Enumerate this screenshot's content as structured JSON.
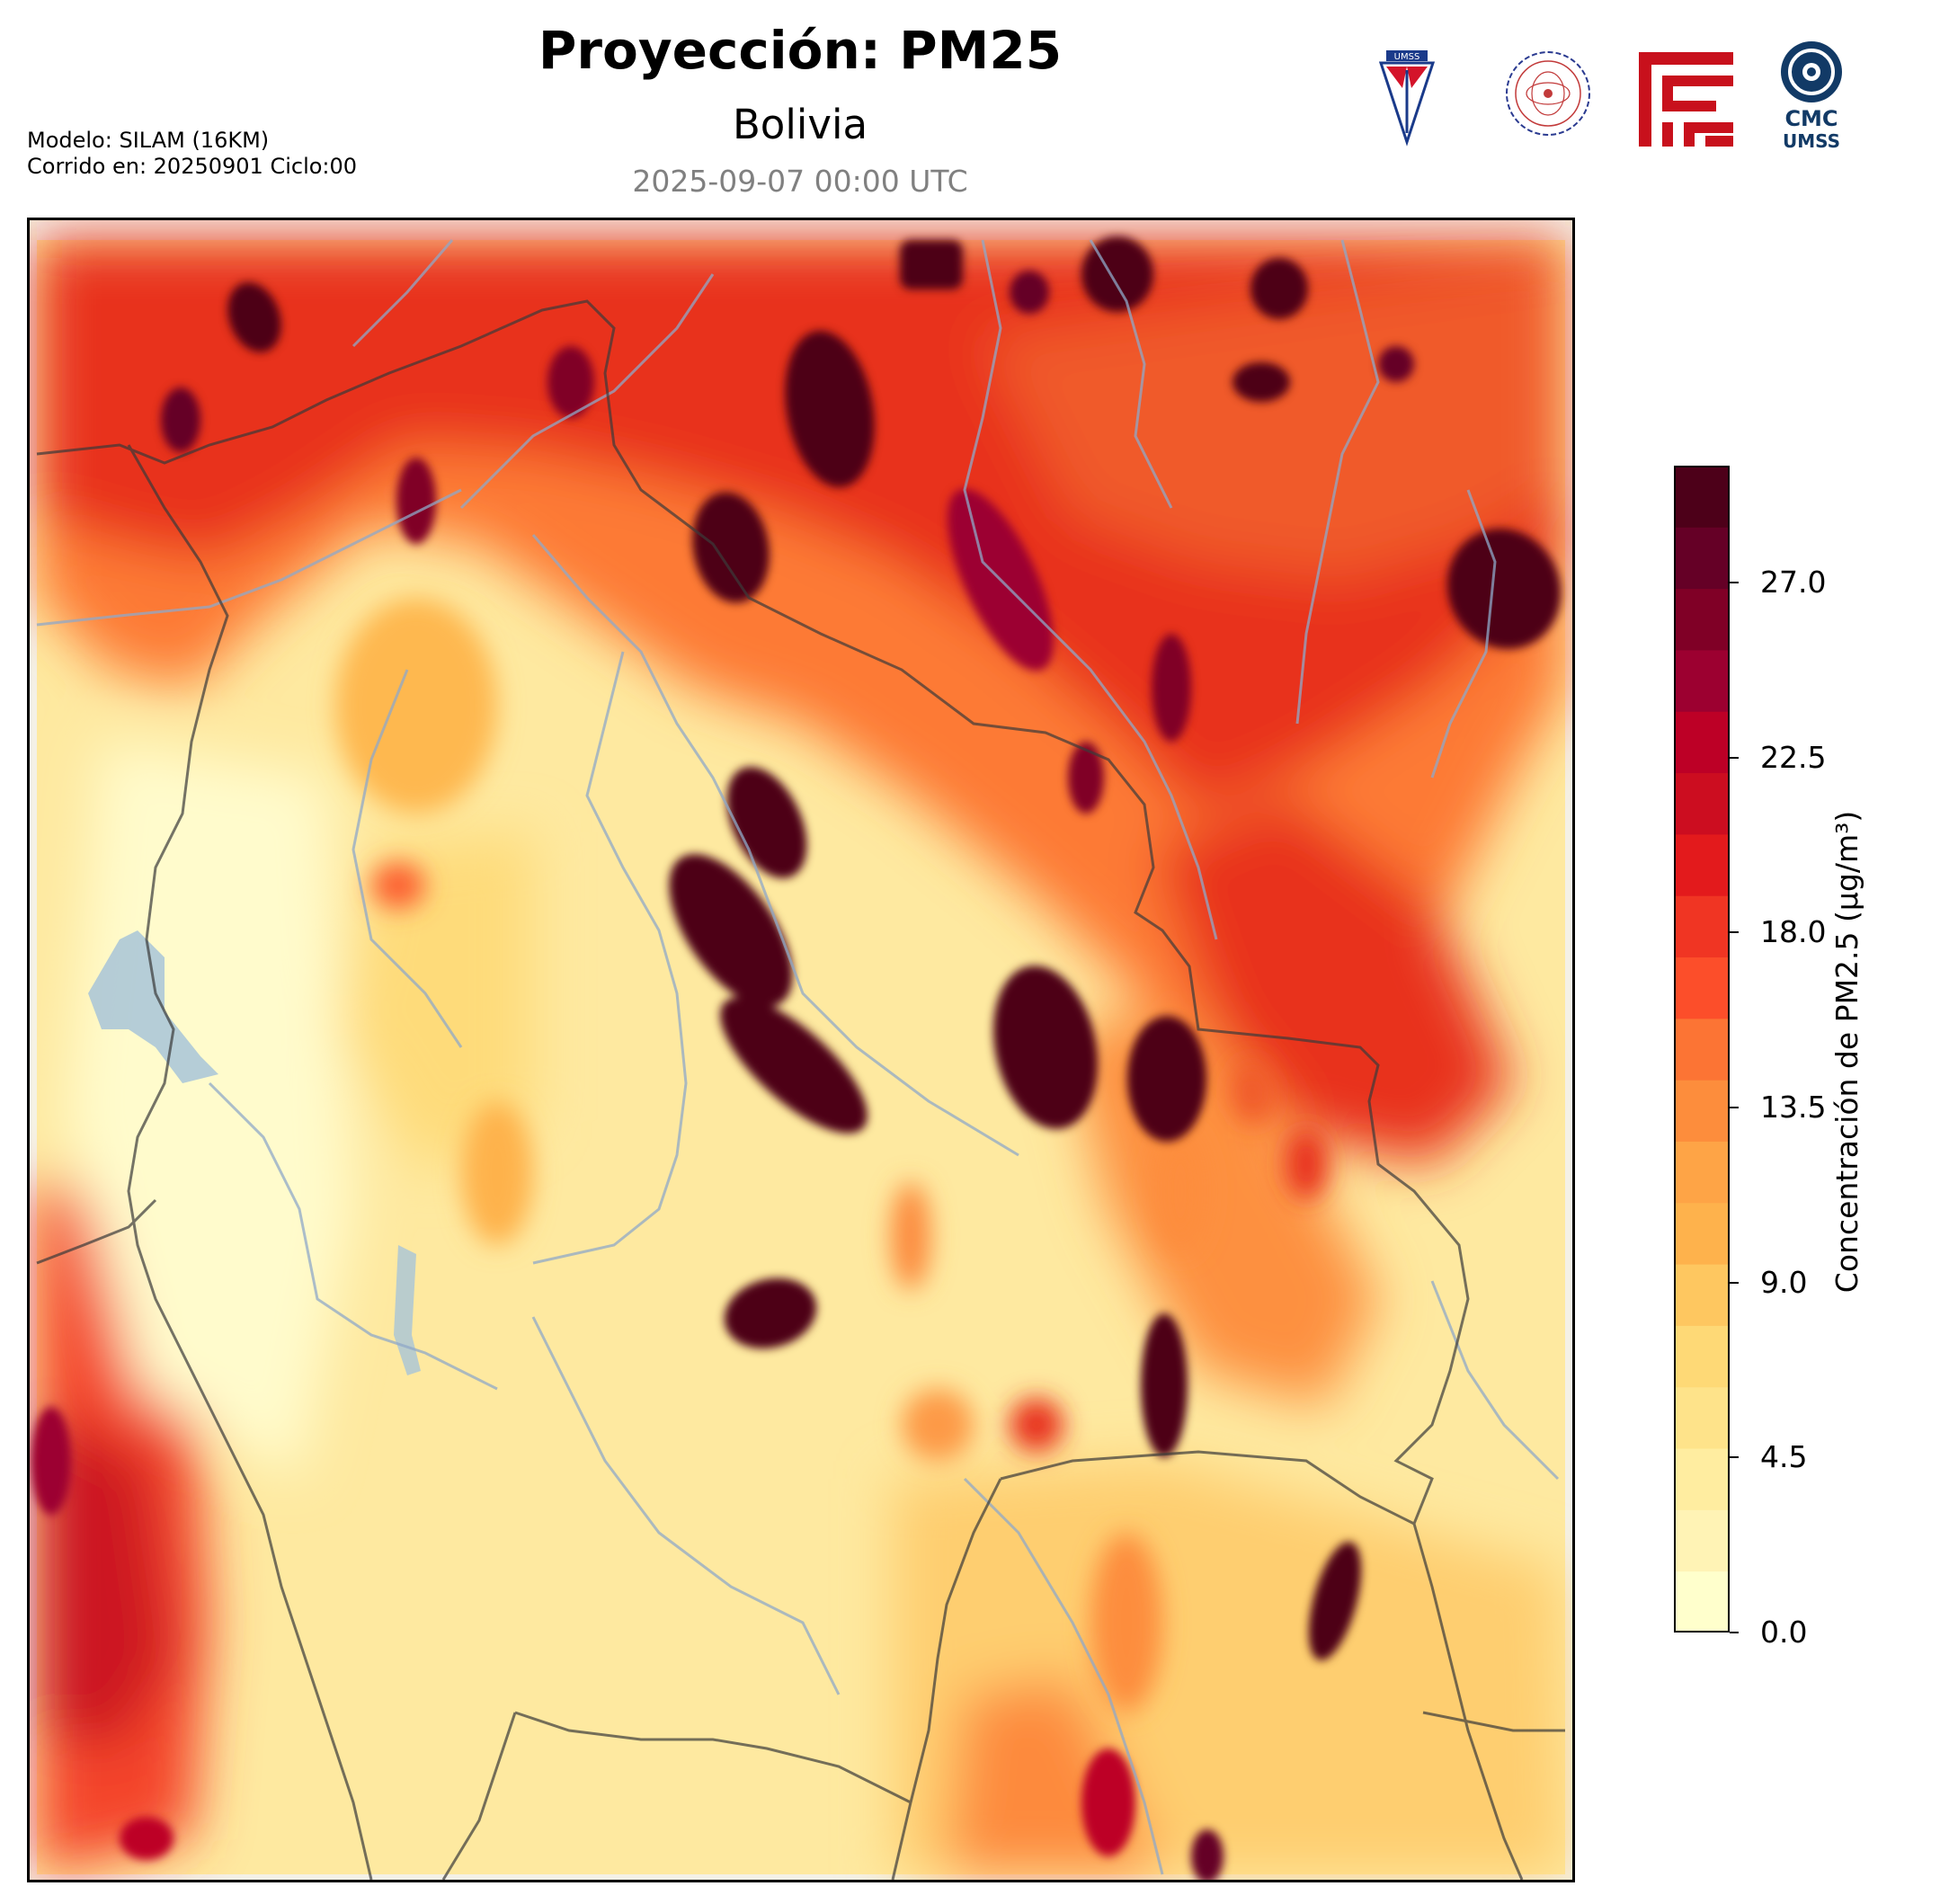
{
  "header": {
    "title": "Proyección: PM25",
    "subtitle": "Bolivia",
    "datetime": "2025-09-07 00:00 UTC",
    "model_line1": "Modelo: SILAM (16KM)",
    "model_line2": "Corrido en: 20250901 Ciclo:00"
  },
  "logos": {
    "umss_shield_text": "UMSS",
    "cmc_line1": "CMC",
    "cmc_line2": "UMSS"
  },
  "colorbar": {
    "label": "Concentración de PM2.5 (µg/m³)",
    "ticks": [
      "0.0",
      "4.5",
      "9.0",
      "13.5",
      "18.0",
      "22.5",
      "27.0"
    ],
    "min": 0,
    "max": 30,
    "colors": [
      "#ffffcc",
      "#fff3b5",
      "#ffeda0",
      "#fee38a",
      "#fed976",
      "#fec760",
      "#feb24c",
      "#fea446",
      "#fd8d3c",
      "#fc7434",
      "#fc4e2a",
      "#f03523",
      "#e31a1c",
      "#cc0d20",
      "#bd0026",
      "#9c0030",
      "#800026",
      "#650026",
      "#4d0019"
    ]
  },
  "colors": {
    "border_lines": "#4a4a4a",
    "rivers": "#8fa8c8",
    "lake": "#a8c4d8"
  }
}
